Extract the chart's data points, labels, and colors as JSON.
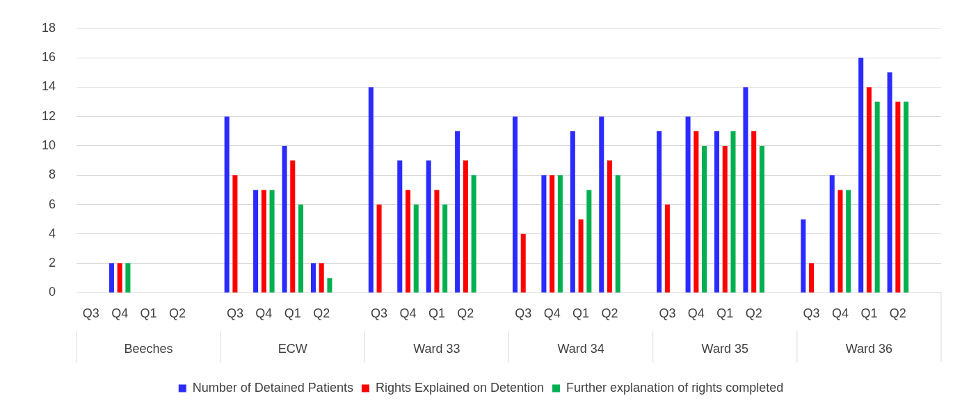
{
  "chart_data": {
    "type": "bar",
    "categories": [
      "Q3",
      "Q4",
      "Q1",
      "Q2",
      null,
      "Q3",
      "Q4",
      "Q1",
      "Q2",
      null,
      "Q3",
      "Q4",
      "Q1",
      "Q2",
      null,
      "Q3",
      "Q4",
      "Q1",
      "Q2",
      null,
      "Q3",
      "Q4",
      "Q1",
      "Q2",
      null,
      "Q3",
      "Q4",
      "Q1",
      "Q2",
      null
    ],
    "series": [
      {
        "name": "Number of Detained Patients",
        "color": "#2b2bff",
        "values": [
          null,
          2,
          null,
          null,
          null,
          12,
          7,
          10,
          2,
          null,
          14,
          9,
          9,
          11,
          null,
          12,
          8,
          11,
          12,
          null,
          11,
          12,
          11,
          14,
          null,
          5,
          8,
          16,
          15,
          null
        ]
      },
      {
        "name": "Rights Explained on Detention",
        "color": "#ff0000",
        "values": [
          null,
          2,
          null,
          null,
          null,
          8,
          7,
          9,
          2,
          null,
          6,
          7,
          7,
          9,
          null,
          4,
          8,
          5,
          9,
          null,
          6,
          11,
          10,
          11,
          null,
          2,
          7,
          14,
          13,
          null
        ]
      },
      {
        "name": "Further explanation of rights completed",
        "color": "#00b050",
        "values": [
          null,
          2,
          null,
          null,
          null,
          null,
          7,
          6,
          1,
          null,
          null,
          6,
          6,
          8,
          null,
          null,
          8,
          7,
          8,
          null,
          null,
          10,
          11,
          10,
          null,
          null,
          7,
          13,
          13,
          null
        ]
      }
    ],
    "annotations": [
      "Beeches",
      "ECW",
      "Ward 33",
      "Ward 34",
      "Ward 35",
      "Ward 36"
    ],
    "ylim": [
      0,
      18
    ],
    "yticks": [
      0,
      2,
      4,
      6,
      8,
      10,
      12,
      14,
      16,
      18
    ],
    "grid": "y",
    "legend": "bottom"
  }
}
